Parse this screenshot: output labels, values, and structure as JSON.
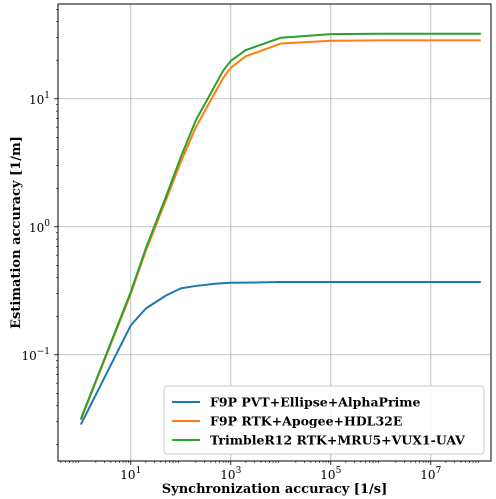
{
  "chart_data": {
    "type": "line",
    "xlabel": "Synchronization accuracy [1/s]",
    "ylabel": "Estimation accuracy [1/m]",
    "xscale": "log",
    "yscale": "log",
    "xlim": [
      0.35,
      160000000.0
    ],
    "ylim": [
      0.0148,
      55
    ],
    "grid": true,
    "legend_position": "lower-right",
    "x_ticks": [
      {
        "value": 10,
        "mantissa": "10",
        "exp": "1"
      },
      {
        "value": 1000,
        "mantissa": "10",
        "exp": "3"
      },
      {
        "value": 100000,
        "mantissa": "10",
        "exp": "5"
      },
      {
        "value": 10000000,
        "mantissa": "10",
        "exp": "7"
      }
    ],
    "y_ticks": [
      {
        "value": 0.1,
        "mantissa": "10",
        "exp": "−1"
      },
      {
        "value": 1,
        "mantissa": "10",
        "exp": "0"
      },
      {
        "value": 10,
        "mantissa": "10",
        "exp": "1"
      }
    ],
    "series": [
      {
        "name": "F9P PVT+Ellipse+AlphaPrime",
        "color": "#1f77b4",
        "points": [
          [
            1,
            0.0285
          ],
          [
            10,
            0.17
          ],
          [
            20,
            0.23
          ],
          [
            50,
            0.29
          ],
          [
            100,
            0.33
          ],
          [
            200,
            0.345
          ],
          [
            500,
            0.36
          ],
          [
            1000,
            0.365
          ],
          [
            10000,
            0.37
          ],
          [
            100000,
            0.37
          ],
          [
            1000000,
            0.37
          ],
          [
            10000000,
            0.37
          ],
          [
            100000000,
            0.37
          ]
        ]
      },
      {
        "name": "F9P RTK+Apogee+HDL32E",
        "color": "#ff7f0e",
        "points": [
          [
            1,
            0.031
          ],
          [
            10,
            0.3
          ],
          [
            20,
            0.65
          ],
          [
            50,
            1.6
          ],
          [
            100,
            3.2
          ],
          [
            200,
            6.0
          ],
          [
            700,
            14.5
          ],
          [
            1000,
            17.5
          ],
          [
            2000,
            21.5
          ],
          [
            10000,
            27.0
          ],
          [
            100000,
            28.4
          ],
          [
            1000000,
            28.6
          ],
          [
            10000000,
            28.6
          ],
          [
            100000000,
            28.6
          ]
        ]
      },
      {
        "name": "TrimbleR12 RTK+MRU5+VUX1-UAV",
        "color": "#2ca02c",
        "points": [
          [
            1,
            0.0315
          ],
          [
            10,
            0.31
          ],
          [
            20,
            0.68
          ],
          [
            50,
            1.7
          ],
          [
            100,
            3.5
          ],
          [
            200,
            6.8
          ],
          [
            700,
            16.5
          ],
          [
            1000,
            19.8
          ],
          [
            2000,
            24.0
          ],
          [
            10000,
            30.0
          ],
          [
            100000,
            32.0
          ],
          [
            1000000,
            32.2
          ],
          [
            10000000,
            32.2
          ],
          [
            100000000,
            32.2
          ]
        ]
      }
    ]
  }
}
